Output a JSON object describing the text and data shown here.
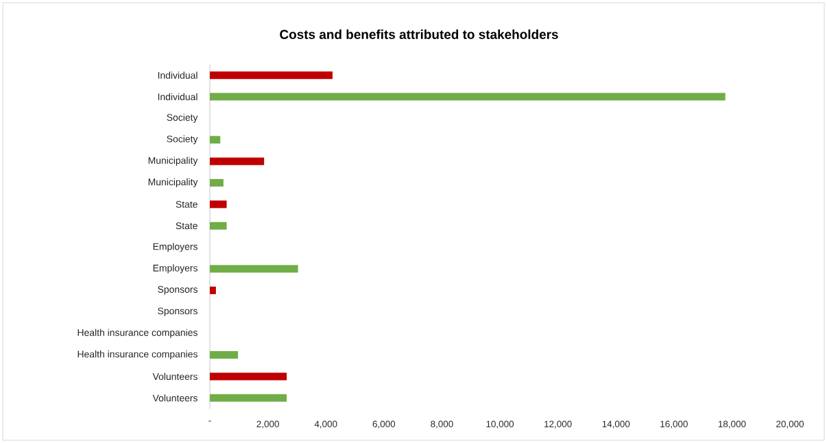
{
  "chart_data": {
    "type": "bar",
    "orientation": "horizontal",
    "title": "Costs and benefits attributed to stakeholders",
    "categories": [
      "Individual",
      "Individual",
      "Society",
      "Society",
      "Municipality",
      "Municipality",
      "State",
      "State",
      "Employers",
      "Employers",
      "Sponsors",
      "Sponsors",
      "Health insurance companies",
      "Health insurance companies",
      "Volunteers",
      "Volunteers"
    ],
    "values": [
      4230,
      17770,
      null,
      360,
      1870,
      470,
      580,
      580,
      null,
      3040,
      210,
      null,
      null,
      970,
      2650,
      2650
    ],
    "colors": [
      "#c00000",
      "#70ad47",
      "#c00000",
      "#70ad47",
      "#c00000",
      "#70ad47",
      "#c00000",
      "#70ad47",
      "#c00000",
      "#70ad47",
      "#c00000",
      "#70ad47",
      "#c00000",
      "#70ad47",
      "#c00000",
      "#70ad47"
    ],
    "xlim": [
      0,
      20000
    ],
    "xticks": [
      {
        "value": 0,
        "label": "-"
      },
      {
        "value": 2000,
        "label": "2,000"
      },
      {
        "value": 4000,
        "label": "4,000"
      },
      {
        "value": 6000,
        "label": "6,000"
      },
      {
        "value": 8000,
        "label": "8,000"
      },
      {
        "value": 10000,
        "label": "10,000"
      },
      {
        "value": 12000,
        "label": "12,000"
      },
      {
        "value": 14000,
        "label": "14,000"
      },
      {
        "value": 16000,
        "label": "16,000"
      },
      {
        "value": 18000,
        "label": "18,000"
      },
      {
        "value": 20000,
        "label": "20,000"
      }
    ],
    "tick_labels": true
  }
}
